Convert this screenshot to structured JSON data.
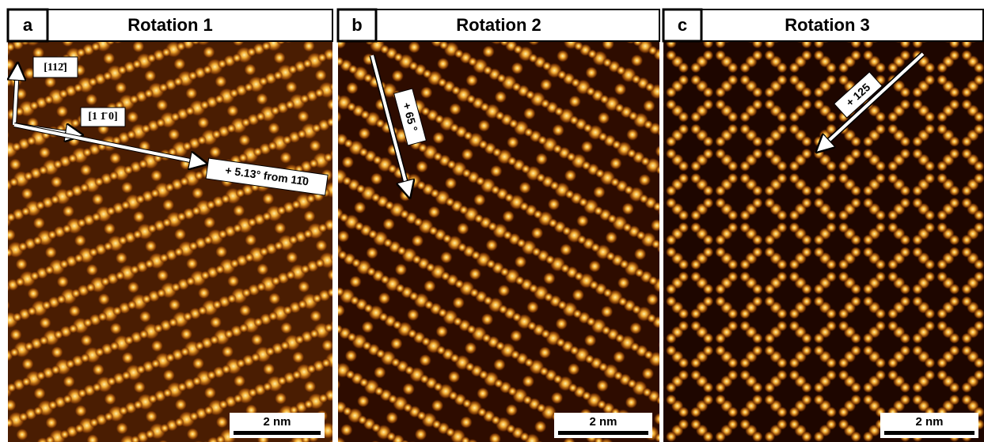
{
  "panels": [
    {
      "letter": "a",
      "title": "Rotation 1",
      "annotations": [
        "[112̄]",
        "[1 1̄ 0]",
        "+ 5.13° from 11̄0"
      ],
      "scale_bar": "2 nm"
    },
    {
      "letter": "b",
      "title": "Rotation 2",
      "annotations": [
        "+ 65 °"
      ],
      "scale_bar": "2 nm"
    },
    {
      "letter": "c",
      "title": "Rotation 3",
      "annotations": [
        "+ 125"
      ],
      "scale_bar": "2 nm"
    }
  ]
}
